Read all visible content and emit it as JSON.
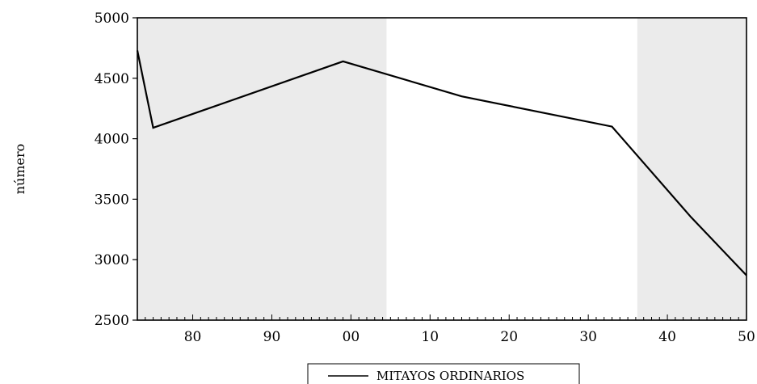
{
  "chart_data": {
    "type": "line",
    "title": "",
    "xlabel": "",
    "ylabel": "número",
    "ylim": [
      2500,
      5000
    ],
    "yticks": [
      2500,
      3000,
      3500,
      4000,
      4500,
      5000
    ],
    "xlim": [
      1773,
      1850
    ],
    "xticks": [
      {
        "value": 1780,
        "label": "80"
      },
      {
        "value": 1790,
        "label": "90"
      },
      {
        "value": 1800,
        "label": "00"
      },
      {
        "value": 1810,
        "label": "10"
      },
      {
        "value": 1820,
        "label": "20"
      },
      {
        "value": 1830,
        "label": "30"
      },
      {
        "value": 1840,
        "label": "40"
      },
      {
        "value": 1850,
        "label": "50"
      }
    ],
    "shaded_periods": [
      {
        "from": 1773,
        "to": 1804.5
      },
      {
        "from": 1836.2,
        "to": 1850
      }
    ],
    "grid": false,
    "legend_position": "bottom-center",
    "series": [
      {
        "name": "MITAYOS ORDINARIOS",
        "color": "#000000",
        "x": [
          1773.0,
          1775.0,
          1799.0,
          1814.0,
          1833.0,
          1843.0,
          1850.0
        ],
        "y": [
          4730,
          4090,
          4640,
          4350,
          4100,
          3350,
          2870
        ]
      }
    ]
  }
}
